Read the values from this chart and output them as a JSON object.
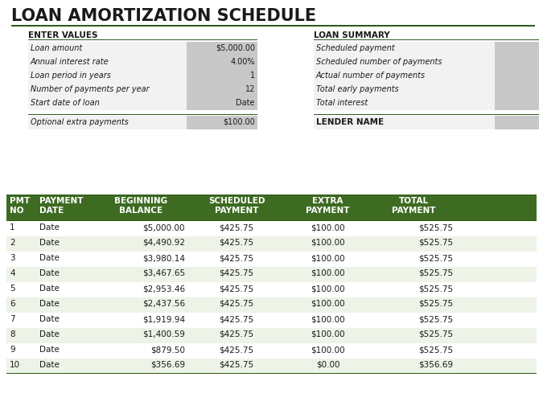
{
  "title": "LOAN AMORTIZATION SCHEDULE",
  "title_color": "#1a1a1a",
  "title_fontsize": 15,
  "bg_color": "#ffffff",
  "dark_green": "#2d5a1b",
  "header_green": "#3d6b22",
  "row_alt_color": "#eef3e8",
  "row_white": "#ffffff",
  "gray_cell": "#c8c8c8",
  "light_cell": "#f2f2f2",
  "enter_values_label": "ENTER VALUES",
  "loan_summary_label": "LOAN SUMMARY",
  "lender_name_label": "LENDER NAME",
  "enter_values_rows": [
    [
      "Loan amount",
      "$5,000.00"
    ],
    [
      "Annual interest rate",
      "4.00%"
    ],
    [
      "Loan period in years",
      "1"
    ],
    [
      "Number of payments per year",
      "12"
    ],
    [
      "Start date of loan",
      "Date"
    ]
  ],
  "extra_payments_label": "Optional extra payments",
  "extra_payments_value": "$100.00",
  "loan_summary_rows": [
    "Scheduled payment",
    "Scheduled number of payments",
    "Actual number of payments",
    "Total early payments",
    "Total interest"
  ],
  "table_headers": [
    "PMT\nNO",
    "PAYMENT\nDATE",
    "BEGINNING\nBALANCE",
    "SCHEDULED\nPAYMENT",
    "EXTRA\nPAYMENT",
    "TOTAL\nPAYMENT"
  ],
  "table_data": [
    [
      "1",
      "Date",
      "$5,000.00",
      "$425.75",
      "$100.00",
      "$525.75"
    ],
    [
      "2",
      "Date",
      "$4,490.92",
      "$425.75",
      "$100.00",
      "$525.75"
    ],
    [
      "3",
      "Date",
      "$3,980.14",
      "$425.75",
      "$100.00",
      "$525.75"
    ],
    [
      "4",
      "Date",
      "$3,467.65",
      "$425.75",
      "$100.00",
      "$525.75"
    ],
    [
      "5",
      "Date",
      "$2,953.46",
      "$425.75",
      "$100.00",
      "$525.75"
    ],
    [
      "6",
      "Date",
      "$2,437.56",
      "$425.75",
      "$100.00",
      "$525.75"
    ],
    [
      "7",
      "Date",
      "$1,919.94",
      "$425.75",
      "$100.00",
      "$525.75"
    ],
    [
      "8",
      "Date",
      "$1,400.59",
      "$425.75",
      "$100.00",
      "$525.75"
    ],
    [
      "9",
      "Date",
      "$879.50",
      "$425.75",
      "$100.00",
      "$525.75"
    ],
    [
      "10",
      "Date",
      "$356.69",
      "$425.75",
      "$0.00",
      "$356.69"
    ]
  ]
}
